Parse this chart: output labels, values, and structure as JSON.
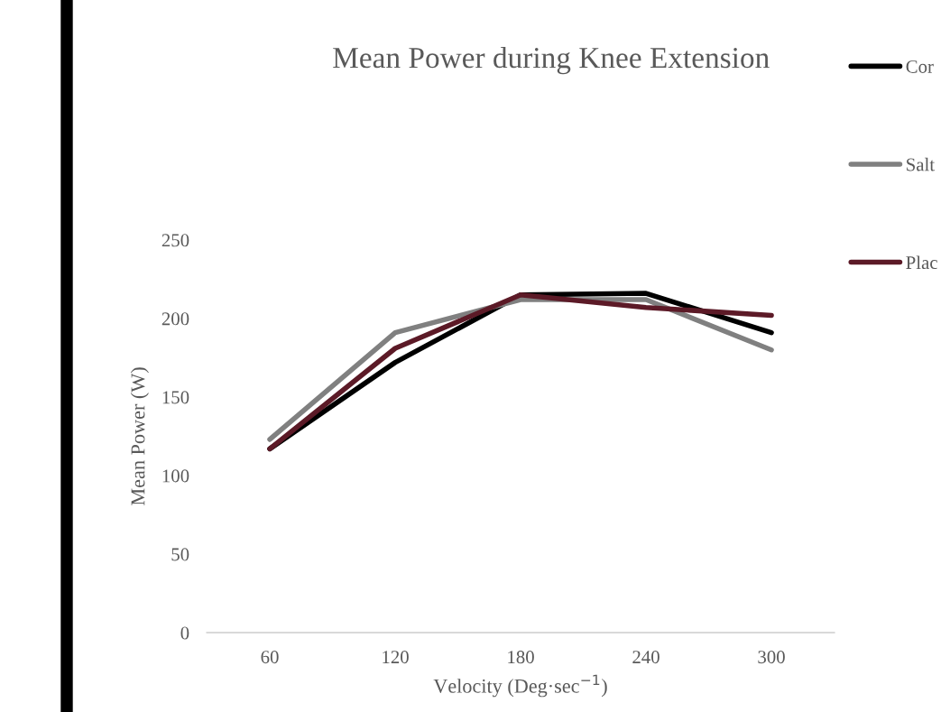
{
  "chart_data": {
    "type": "line",
    "title": "Mean Power during Knee Extension",
    "xlabel": "Velocity (Deg·sec$^{−1}$)",
    "ylabel": "Mean Power (W)",
    "categories": [
      "60",
      "120",
      "180",
      "240",
      "300"
    ],
    "series": [
      {
        "name": "Cor",
        "color": "#000000",
        "values": [
          117,
          172,
          215,
          216,
          191
        ]
      },
      {
        "name": "Salt",
        "color": "#808080",
        "values": [
          123,
          191,
          212,
          212,
          180
        ]
      },
      {
        "name": "Plac",
        "color": "#5c1a27",
        "values": [
          117,
          181,
          215,
          207,
          202
        ]
      }
    ],
    "ylim": [
      0,
      250
    ],
    "yticks": [
      0,
      50,
      100,
      150,
      200,
      250
    ],
    "grid": false,
    "legend": "right",
    "marker": "none",
    "line_style": "solid"
  }
}
